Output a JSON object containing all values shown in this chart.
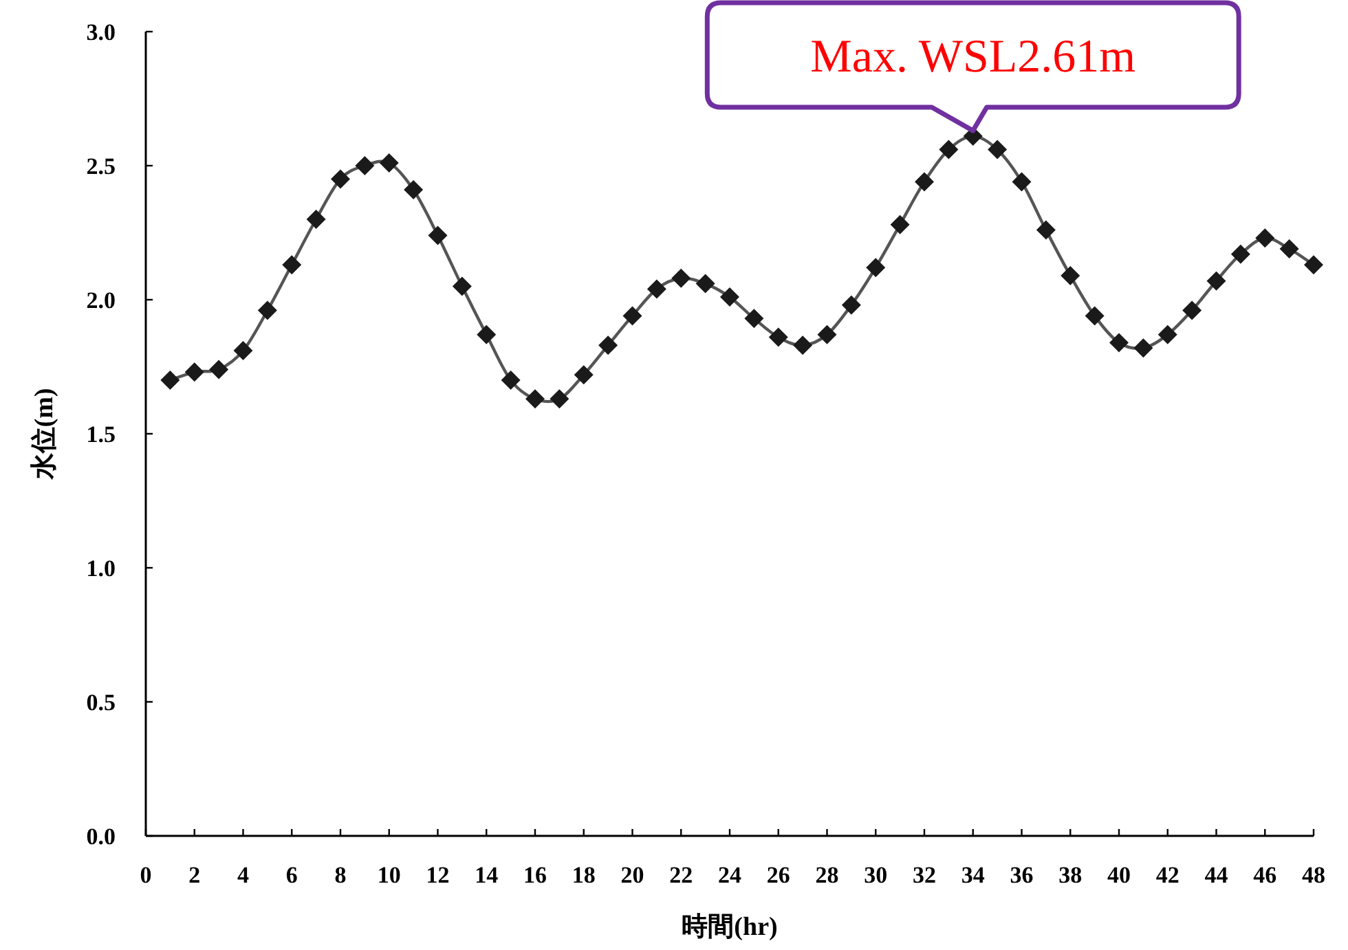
{
  "chart_data": {
    "type": "line",
    "xlabel": "時間(hr)",
    "ylabel": "水位(m)",
    "color": "#1a1a1a",
    "marker": "diamond",
    "line_style": "solid",
    "x": [
      1,
      2,
      3,
      4,
      5,
      6,
      7,
      8,
      9,
      10,
      11,
      12,
      13,
      14,
      15,
      16,
      17,
      18,
      19,
      20,
      21,
      22,
      23,
      24,
      25,
      26,
      27,
      28,
      29,
      30,
      31,
      32,
      33,
      34,
      35,
      36,
      37,
      38,
      39,
      40,
      41,
      42,
      43,
      44,
      45,
      46,
      47,
      48
    ],
    "values": [
      1.7,
      1.73,
      1.74,
      1.81,
      1.96,
      2.13,
      2.3,
      2.45,
      2.5,
      2.51,
      2.41,
      2.24,
      2.05,
      1.87,
      1.7,
      1.63,
      1.63,
      1.72,
      1.83,
      1.94,
      2.04,
      2.08,
      2.06,
      2.01,
      1.93,
      1.86,
      1.83,
      1.87,
      1.98,
      2.12,
      2.28,
      2.44,
      2.56,
      2.61,
      2.56,
      2.44,
      2.26,
      2.09,
      1.94,
      1.84,
      1.82,
      1.87,
      1.96,
      2.07,
      2.17,
      2.23,
      2.19,
      2.13
    ],
    "xlim": [
      0,
      48
    ],
    "xticks": [
      0,
      2,
      4,
      6,
      8,
      10,
      12,
      14,
      16,
      18,
      20,
      22,
      24,
      26,
      28,
      30,
      32,
      34,
      36,
      38,
      40,
      42,
      44,
      46,
      48
    ],
    "ylim": [
      0,
      3
    ],
    "yticks": [
      {
        "value": 0,
        "label": "0.0"
      },
      {
        "value": 0.5,
        "label": "0.5"
      },
      {
        "value": 1,
        "label": "1.0"
      },
      {
        "value": 1.5,
        "label": "1.5"
      },
      {
        "value": 2,
        "label": "2.0"
      },
      {
        "value": 2.5,
        "label": "2.5"
      },
      {
        "value": 3,
        "label": "3.0"
      }
    ],
    "annotations": [
      {
        "text": "Max. WSL2.61m",
        "x": 34,
        "y": 2.61
      }
    ]
  }
}
